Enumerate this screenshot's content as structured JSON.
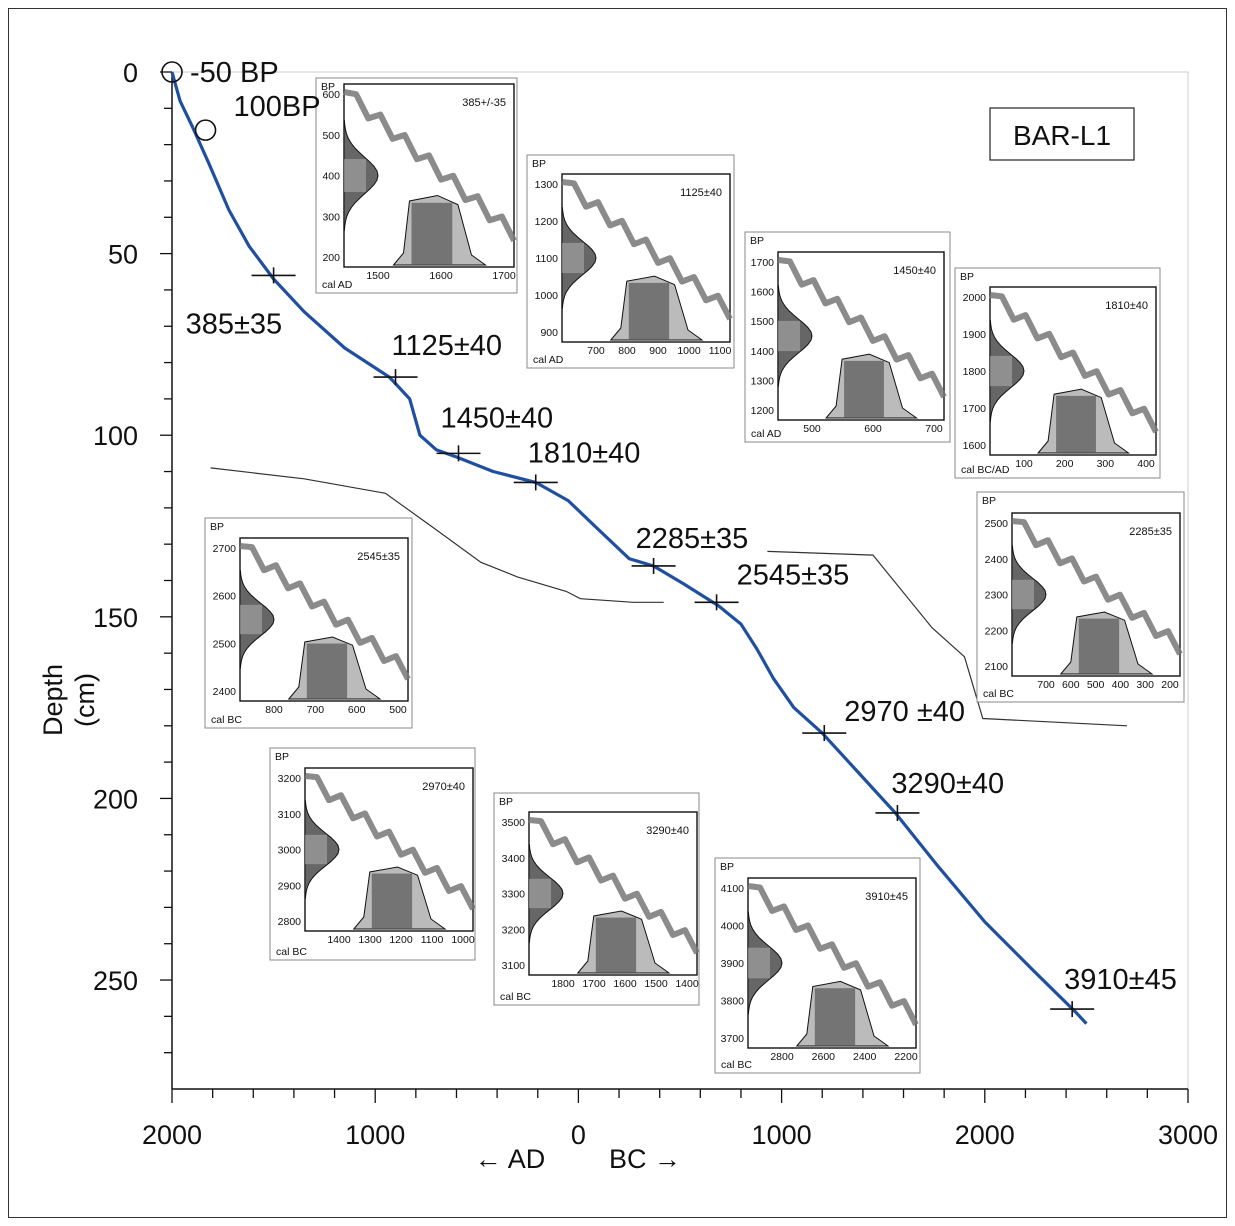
{
  "chart_data": {
    "type": "line",
    "title": "",
    "site_label": "BAR-L1",
    "xlabel_left": "← AD",
    "xlabel_right": "BC →",
    "ylabel_line1": "Depth",
    "ylabel_line2": "(cm)",
    "xlim": [
      2000,
      -3000
    ],
    "ylim": [
      0,
      280
    ],
    "x_ticks": [
      {
        "value": 2000,
        "label": "2000"
      },
      {
        "value": 1000,
        "label": "1000"
      },
      {
        "value": 0,
        "label": "0"
      },
      {
        "value": -1000,
        "label": "1000"
      },
      {
        "value": -2000,
        "label": "2000"
      },
      {
        "value": -3000,
        "label": "3000"
      }
    ],
    "y_ticks": [
      {
        "value": 0,
        "label": "0"
      },
      {
        "value": 50,
        "label": "50"
      },
      {
        "value": 100,
        "label": "100"
      },
      {
        "value": 150,
        "label": "150"
      },
      {
        "value": 200,
        "label": "200"
      },
      {
        "value": 250,
        "label": "250"
      }
    ],
    "curve": [
      [
        2000,
        0
      ],
      [
        1960,
        8
      ],
      [
        1900,
        15
      ],
      [
        1820,
        25
      ],
      [
        1720,
        38
      ],
      [
        1620,
        48
      ],
      [
        1500,
        57
      ],
      [
        1350,
        66
      ],
      [
        1150,
        76
      ],
      [
        930,
        84
      ],
      [
        830,
        90
      ],
      [
        780,
        100
      ],
      [
        700,
        104
      ],
      [
        600,
        106
      ],
      [
        420,
        110
      ],
      [
        210,
        113
      ],
      [
        50,
        118
      ],
      [
        -80,
        125
      ],
      [
        -250,
        134
      ],
      [
        -370,
        136
      ],
      [
        -520,
        141
      ],
      [
        -690,
        147
      ],
      [
        -800,
        152
      ],
      [
        -880,
        159
      ],
      [
        -960,
        167
      ],
      [
        -1060,
        175
      ],
      [
        -1200,
        182
      ],
      [
        -1380,
        193
      ],
      [
        -1560,
        204
      ],
      [
        -1760,
        218
      ],
      [
        -2000,
        234
      ],
      [
        -2250,
        248
      ],
      [
        -2450,
        259
      ],
      [
        -2500,
        262
      ]
    ],
    "dates": [
      {
        "cal": -50,
        "x": 2000,
        "y": 0,
        "label": "-50 BP",
        "marker": "circle"
      },
      {
        "cal": 100,
        "x": 1835,
        "y": 16,
        "label": "100BP",
        "marker": "circle"
      },
      {
        "x": 1500,
        "y": 56,
        "label": "385±35",
        "marker": "cross"
      },
      {
        "x": 900,
        "y": 84,
        "label": "1125±40",
        "marker": "cross"
      },
      {
        "x": 590,
        "y": 105,
        "label": "1450±40",
        "marker": "cross"
      },
      {
        "x": 210,
        "y": 113,
        "label": "1810±40",
        "marker": "cross"
      },
      {
        "x": -370,
        "y": 136,
        "label": "2285±35",
        "marker": "cross"
      },
      {
        "x": -680,
        "y": 146,
        "label": "2545±35",
        "marker": "cross"
      },
      {
        "x": -1210,
        "y": 182,
        "label": "2970 ±40",
        "marker": "cross"
      },
      {
        "x": -1570,
        "y": 204,
        "label": "3290±40",
        "marker": "cross"
      },
      {
        "x": -2430,
        "y": 258,
        "label": "3910±45",
        "marker": "cross"
      }
    ],
    "boundaries": [
      [
        [
          1810,
          109
        ],
        [
          1350,
          112
        ],
        [
          950,
          116
        ],
        [
          700,
          126
        ],
        [
          480,
          135
        ],
        [
          300,
          139
        ],
        [
          60,
          143
        ],
        [
          -10,
          145
        ],
        [
          -270,
          146
        ],
        [
          -420,
          146
        ]
      ],
      [
        [
          -930,
          132
        ],
        [
          -1450,
          133
        ],
        [
          -1740,
          153
        ],
        [
          -1900,
          161
        ],
        [
          -1990,
          178
        ],
        [
          -2700,
          180
        ]
      ]
    ],
    "insets": [
      {
        "title": "385+/-35",
        "y_ticks": [
          "600",
          "500",
          "400",
          "300",
          "200"
        ],
        "x_ticks": [
          "1500",
          "1600",
          "1700"
        ],
        "x_unit": "cal AD",
        "y_unit": "BP"
      },
      {
        "title": "1125±40",
        "y_ticks": [
          "1300",
          "1200",
          "1100",
          "1000",
          "900"
        ],
        "x_ticks": [
          "700",
          "800",
          "900",
          "1000",
          "1100"
        ],
        "x_unit": "cal AD",
        "y_unit": "BP"
      },
      {
        "title": "1450±40",
        "y_ticks": [
          "1700",
          "1600",
          "1500",
          "1400",
          "1300",
          "1200"
        ],
        "x_ticks": [
          "500",
          "600",
          "700"
        ],
        "x_unit": "cal AD",
        "y_unit": "BP"
      },
      {
        "title": "1810±40",
        "y_ticks": [
          "2000",
          "1900",
          "1800",
          "1700",
          "1600"
        ],
        "x_ticks": [
          "100",
          "200",
          "300",
          "400"
        ],
        "x_unit": "cal BC/AD",
        "y_unit": "BP"
      },
      {
        "title": "2545±35",
        "y_ticks": [
          "2700",
          "2600",
          "2500",
          "2400"
        ],
        "x_ticks": [
          "800",
          "700",
          "600",
          "500"
        ],
        "x_unit": "cal BC",
        "y_unit": "BP"
      },
      {
        "title": "2285±35",
        "y_ticks": [
          "2500",
          "2400",
          "2300",
          "2200",
          "2100"
        ],
        "x_ticks": [
          "700",
          "600",
          "500",
          "400",
          "300",
          "200"
        ],
        "x_unit": "cal BC",
        "y_unit": "BP"
      },
      {
        "title": "2970±40",
        "y_ticks": [
          "3200",
          "3100",
          "3000",
          "2900",
          "2800"
        ],
        "x_ticks": [
          "1400",
          "1300",
          "1200",
          "1100",
          "1000"
        ],
        "x_unit": "cal BC",
        "y_unit": "BP"
      },
      {
        "title": "3290±40",
        "y_ticks": [
          "3500",
          "3400",
          "3300",
          "3200",
          "3100"
        ],
        "x_ticks": [
          "1800",
          "1700",
          "1600",
          "1500",
          "1400"
        ],
        "x_unit": "cal BC",
        "y_unit": "BP"
      },
      {
        "title": "3910±45",
        "y_ticks": [
          "4100",
          "4000",
          "3900",
          "3800",
          "3700"
        ],
        "x_ticks": [
          "2800",
          "2600",
          "2400",
          "2200"
        ],
        "x_unit": "cal BC",
        "y_unit": "BP"
      }
    ]
  }
}
